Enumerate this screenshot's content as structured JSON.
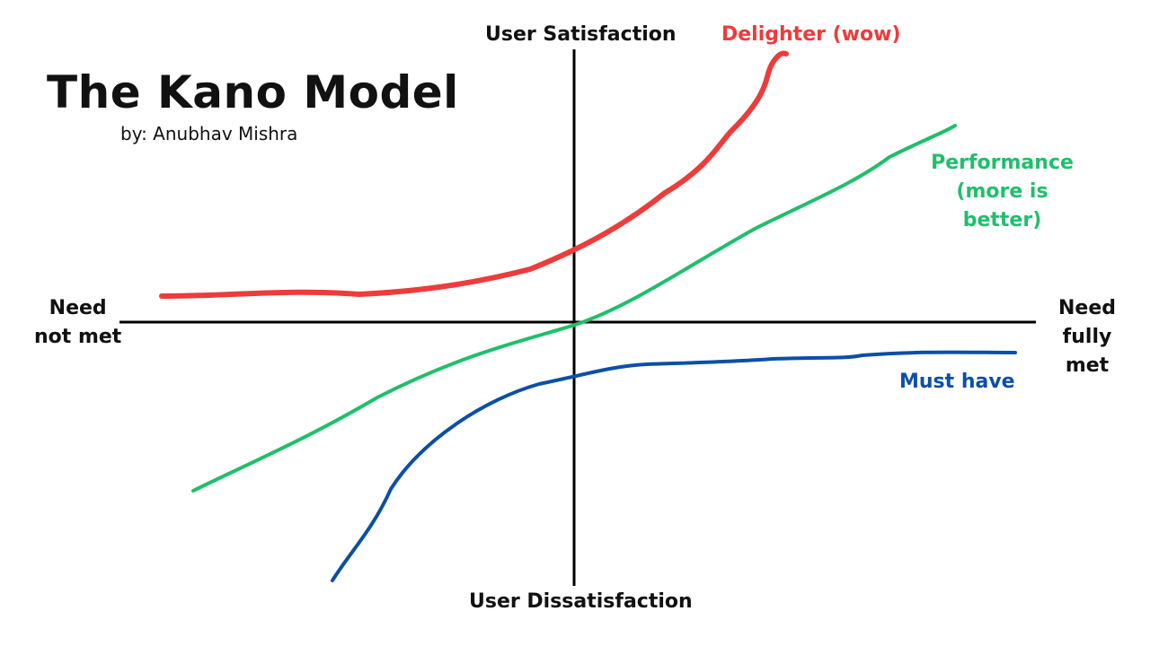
{
  "title": "The Kano Model",
  "byline": "by: Anubhav Mishra",
  "axes": {
    "y_positive": "User Satisfaction",
    "y_negative": "User Dissatisfaction",
    "x_negative_line1": "Need",
    "x_negative_line2": "not met",
    "x_positive_line1": "Need",
    "x_positive_line2": "fully met"
  },
  "curves": {
    "delighter": {
      "label": "Delighter (wow)",
      "color": "#ee3b3b"
    },
    "performance": {
      "label_line1": "Performance",
      "label_line2": "(more is better)",
      "color": "#1fbf6b"
    },
    "must_have": {
      "label": "Must have",
      "color": "#0b4fa7"
    }
  },
  "axis_color": "#000000"
}
